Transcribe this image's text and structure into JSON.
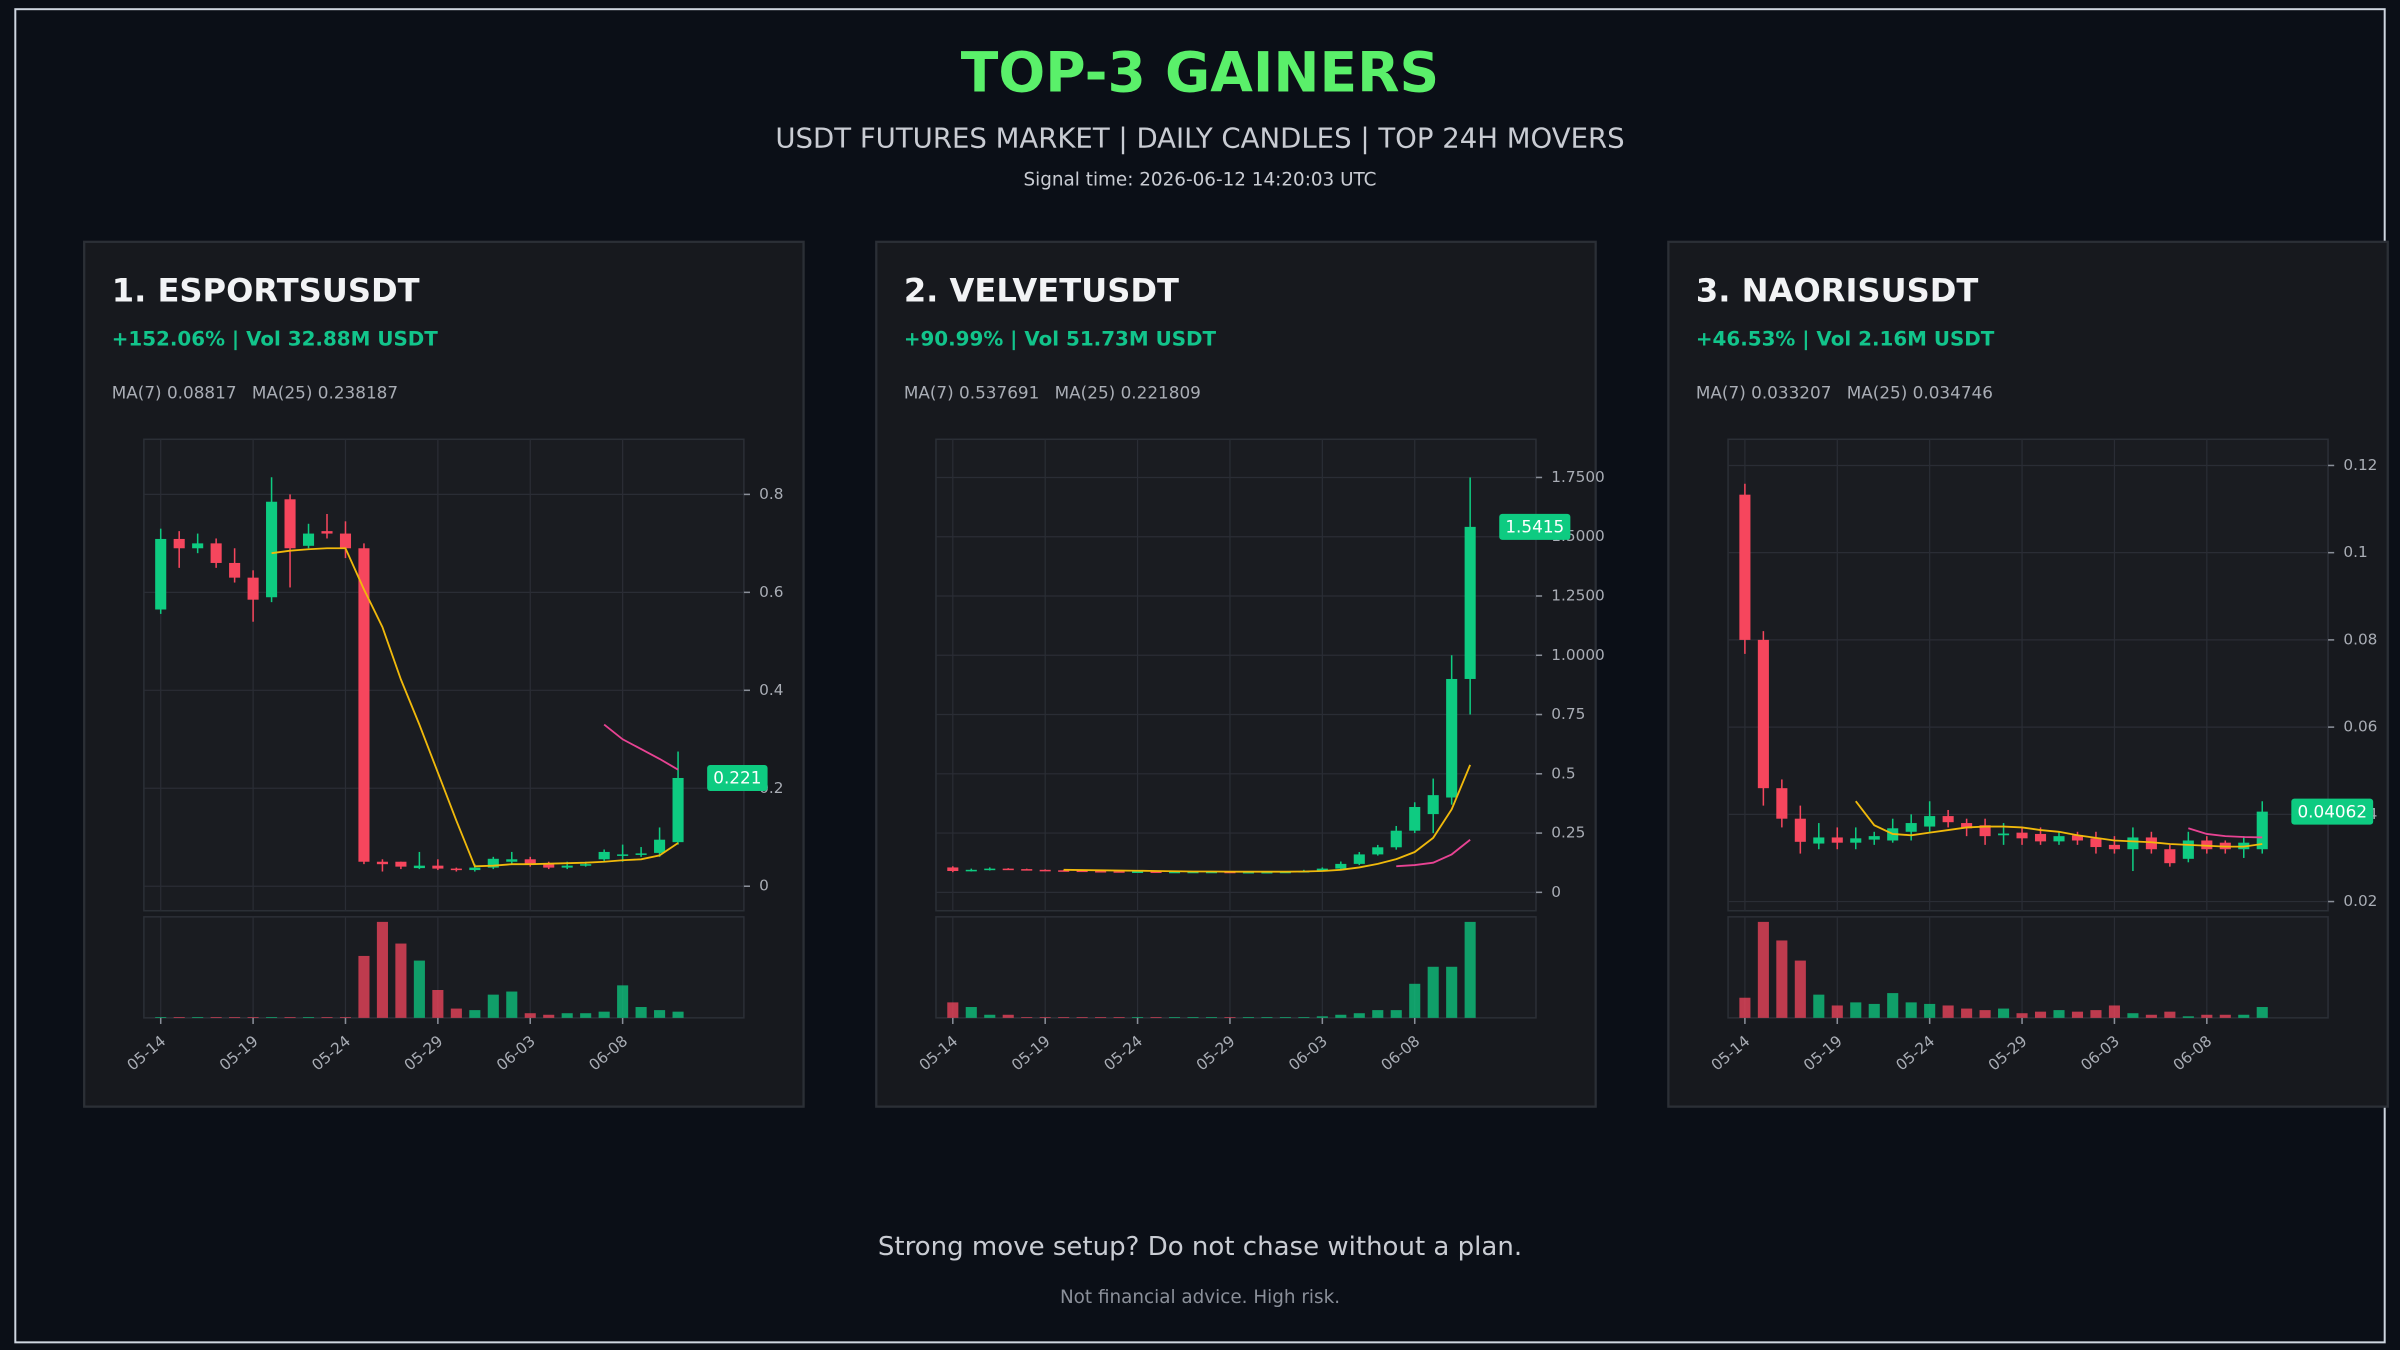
{
  "header": {
    "title": "TOP-3 GAINERS",
    "subtitle": "USDT FUTURES MARKET | DAILY CANDLES | TOP 24H MOVERS",
    "signal": "Signal time: 2026-06-12 14:20:03 UTC"
  },
  "footer": {
    "text": "Strong move setup? Do not chase without a plan.",
    "note": "Not financial advice. High risk."
  },
  "chart_data": [
    {
      "type": "candlestick",
      "title": "1. ESPORTSUSDT",
      "subtitle": "+152.06% | Vol 32.88M USDT",
      "ma_labels": [
        "MA(7) 0.08817",
        "MA(25) 0.238187"
      ],
      "categories": [
        "05-14",
        null,
        null,
        null,
        null,
        "05-19",
        null,
        null,
        null,
        null,
        "05-24",
        null,
        null,
        null,
        null,
        "05-29",
        null,
        null,
        null,
        null,
        "06-03",
        null,
        null,
        null,
        null,
        "06-08",
        null,
        null,
        null
      ],
      "open": [
        0.565,
        0.709,
        0.69,
        0.7,
        0.66,
        0.63,
        0.59,
        0.79,
        0.695,
        0.725,
        0.72,
        0.69,
        0.05,
        0.05,
        0.037,
        0.042,
        0.036,
        0.033,
        0.038,
        0.05,
        0.055,
        0.045,
        0.038,
        0.042,
        0.055,
        0.062,
        0.065,
        0.068,
        0.09
      ],
      "high": [
        0.73,
        0.725,
        0.72,
        0.71,
        0.69,
        0.645,
        0.835,
        0.8,
        0.74,
        0.76,
        0.745,
        0.7,
        0.055,
        0.05,
        0.07,
        0.055,
        0.038,
        0.045,
        0.06,
        0.07,
        0.06,
        0.05,
        0.05,
        0.05,
        0.075,
        0.085,
        0.08,
        0.12,
        0.275
      ],
      "low": [
        0.556,
        0.65,
        0.68,
        0.65,
        0.62,
        0.54,
        0.58,
        0.61,
        0.69,
        0.71,
        0.67,
        0.045,
        0.03,
        0.035,
        0.035,
        0.033,
        0.03,
        0.03,
        0.035,
        0.045,
        0.04,
        0.035,
        0.035,
        0.04,
        0.05,
        0.05,
        0.06,
        0.06,
        0.085
      ],
      "close": [
        0.709,
        0.69,
        0.7,
        0.66,
        0.63,
        0.585,
        0.785,
        0.69,
        0.72,
        0.72,
        0.69,
        0.05,
        0.045,
        0.04,
        0.042,
        0.036,
        0.033,
        0.038,
        0.056,
        0.055,
        0.045,
        0.038,
        0.042,
        0.045,
        0.07,
        0.065,
        0.067,
        0.095,
        0.221
      ],
      "volume": [
        0.5,
        0.5,
        0.5,
        0.5,
        0.5,
        0.5,
        0.5,
        0.5,
        0.5,
        0.5,
        0.5,
        40,
        62,
        48,
        37,
        18,
        6,
        5,
        15,
        17,
        3,
        2,
        3,
        3,
        4,
        21,
        7,
        5,
        4
      ],
      "ma7": [
        null,
        null,
        null,
        null,
        null,
        null,
        0.68,
        0.685,
        0.688,
        0.69,
        0.69,
        0.606,
        0.529,
        0.422,
        0.33,
        0.232,
        0.134,
        0.0406,
        0.042,
        0.045,
        0.045,
        0.046,
        0.047,
        0.048,
        0.05,
        0.053,
        0.055,
        0.063,
        0.0882
      ],
      "ma25": [
        null,
        null,
        null,
        null,
        null,
        null,
        null,
        null,
        null,
        null,
        null,
        null,
        null,
        null,
        null,
        null,
        null,
        null,
        null,
        null,
        null,
        null,
        null,
        null,
        0.33,
        0.3,
        0.28,
        0.26,
        0.238
      ],
      "ylim": [
        -0.05,
        0.9125
      ],
      "yticks": [
        0,
        0.2,
        0.4,
        0.6,
        0.8
      ],
      "grid": true,
      "up_color": "#0ecb81",
      "down_color": "#f6465d",
      "ma7_color": "#f0b90b",
      "ma25_color": "#e84393"
    },
    {
      "type": "candlestick",
      "title": "2. VELVETUSDT",
      "subtitle": "+90.99% | Vol 51.73M USDT",
      "ma_labels": [
        "MA(7) 0.537691",
        "MA(25) 0.221809"
      ],
      "categories": [
        "05-14",
        null,
        null,
        null,
        null,
        "05-19",
        null,
        null,
        null,
        null,
        "05-24",
        null,
        null,
        null,
        null,
        "05-29",
        null,
        null,
        null,
        null,
        "06-03",
        null,
        null,
        null,
        null,
        "06-08",
        null,
        null,
        null
      ],
      "open": [
        0.105,
        0.09,
        0.095,
        0.1,
        0.098,
        0.095,
        0.093,
        0.092,
        0.09,
        0.089,
        0.088,
        0.088,
        0.087,
        0.087,
        0.087,
        0.087,
        0.086,
        0.086,
        0.086,
        0.087,
        0.09,
        0.1,
        0.12,
        0.16,
        0.19,
        0.26,
        0.33,
        0.4,
        0.9
      ],
      "high": [
        0.11,
        0.1,
        0.105,
        0.102,
        0.1,
        0.097,
        0.095,
        0.094,
        0.092,
        0.091,
        0.09,
        0.09,
        0.089,
        0.089,
        0.089,
        0.089,
        0.088,
        0.088,
        0.09,
        0.095,
        0.105,
        0.13,
        0.17,
        0.2,
        0.28,
        0.38,
        0.48,
        1.0,
        1.75
      ],
      "low": [
        0.085,
        0.088,
        0.092,
        0.095,
        0.093,
        0.091,
        0.09,
        0.088,
        0.087,
        0.086,
        0.086,
        0.085,
        0.085,
        0.085,
        0.085,
        0.084,
        0.084,
        0.084,
        0.085,
        0.086,
        0.088,
        0.098,
        0.115,
        0.155,
        0.18,
        0.25,
        0.25,
        0.37,
        0.75
      ],
      "close": [
        0.09,
        0.095,
        0.1,
        0.098,
        0.095,
        0.093,
        0.092,
        0.09,
        0.089,
        0.088,
        0.088,
        0.087,
        0.087,
        0.087,
        0.087,
        0.086,
        0.086,
        0.086,
        0.087,
        0.09,
        0.1,
        0.12,
        0.16,
        0.19,
        0.26,
        0.36,
        0.41,
        0.9,
        1.5415
      ],
      "volume": [
        10,
        7,
        2,
        2,
        0.5,
        0.5,
        0.5,
        0.5,
        0.5,
        0.5,
        0.5,
        0.5,
        0.5,
        0.5,
        0.5,
        0.5,
        0.5,
        0.5,
        0.5,
        0.5,
        1,
        2,
        3,
        5,
        5,
        22,
        33,
        33,
        62
      ],
      "ma7": [
        null,
        null,
        null,
        null,
        null,
        null,
        0.095,
        0.094,
        0.093,
        0.092,
        0.091,
        0.09,
        0.089,
        0.088,
        0.088,
        0.087,
        0.087,
        0.087,
        0.087,
        0.088,
        0.09,
        0.095,
        0.105,
        0.12,
        0.14,
        0.17,
        0.23,
        0.35,
        0.5377
      ],
      "ma25": [
        null,
        null,
        null,
        null,
        null,
        null,
        null,
        null,
        null,
        null,
        null,
        null,
        null,
        null,
        null,
        null,
        null,
        null,
        null,
        null,
        null,
        null,
        null,
        null,
        0.11,
        0.115,
        0.125,
        0.16,
        0.2218
      ],
      "ylim": [
        -0.0775,
        1.911
      ],
      "yticks": [
        0,
        0.25,
        0.5,
        0.75,
        {
          "value": 1,
          "label": "1.0000"
        },
        {
          "value": 1.25,
          "label": "1.2500"
        },
        {
          "value": 1.5,
          "label": "1.5000"
        },
        {
          "value": 1.75,
          "label": "1.7500"
        }
      ],
      "grid": true,
      "up_color": "#0ecb81",
      "down_color": "#f6465d",
      "ma7_color": "#f0b90b",
      "ma25_color": "#e84393"
    },
    {
      "type": "candlestick",
      "title": "3. NAORISUSDT",
      "subtitle": "+46.53% | Vol 2.16M USDT",
      "ma_labels": [
        "MA(7) 0.033207",
        "MA(25) 0.034746"
      ],
      "categories": [
        "05-14",
        null,
        null,
        null,
        null,
        "05-19",
        null,
        null,
        null,
        null,
        "05-24",
        null,
        null,
        null,
        null,
        "05-29",
        null,
        null,
        null,
        null,
        "06-03",
        null,
        null,
        null,
        null,
        "06-08",
        null,
        null,
        null
      ],
      "open": [
        0.1133,
        0.08,
        0.046,
        0.039,
        0.0333,
        0.0347,
        0.0335,
        0.0342,
        0.034,
        0.036,
        0.0372,
        0.0396,
        0.038,
        0.0375,
        0.0352,
        0.0358,
        0.0355,
        0.0338,
        0.0352,
        0.0345,
        0.033,
        0.032,
        0.0347,
        0.032,
        0.0298,
        0.034,
        0.0335,
        0.032,
        0.032
      ],
      "high": [
        0.1158,
        0.082,
        0.048,
        0.042,
        0.038,
        0.037,
        0.037,
        0.036,
        0.039,
        0.04,
        0.043,
        0.041,
        0.039,
        0.039,
        0.038,
        0.037,
        0.037,
        0.036,
        0.036,
        0.036,
        0.035,
        0.037,
        0.036,
        0.033,
        0.036,
        0.035,
        0.034,
        0.035,
        0.043
      ],
      "low": [
        0.0768,
        0.042,
        0.037,
        0.031,
        0.032,
        0.032,
        0.032,
        0.033,
        0.0335,
        0.034,
        0.036,
        0.037,
        0.035,
        0.033,
        0.033,
        0.033,
        0.033,
        0.033,
        0.033,
        0.031,
        0.031,
        0.027,
        0.031,
        0.028,
        0.029,
        0.031,
        0.031,
        0.03,
        0.031
      ],
      "close": [
        0.08,
        0.046,
        0.039,
        0.0337,
        0.0347,
        0.0335,
        0.0345,
        0.035,
        0.0368,
        0.038,
        0.0396,
        0.0382,
        0.0368,
        0.035,
        0.0356,
        0.0345,
        0.0338,
        0.035,
        0.034,
        0.0325,
        0.032,
        0.0347,
        0.032,
        0.0288,
        0.034,
        0.032,
        0.032,
        0.0335,
        0.04062
      ],
      "volume": [
        13,
        62,
        50,
        37,
        15,
        8,
        10,
        9,
        16,
        10,
        9,
        8,
        6,
        5,
        6,
        3,
        4,
        5,
        4,
        5,
        8,
        3,
        2,
        4,
        1,
        2,
        2,
        2,
        7
      ],
      "ma7": [
        null,
        null,
        null,
        null,
        null,
        null,
        0.043,
        0.0375,
        0.0355,
        0.0352,
        0.0358,
        0.0364,
        0.037,
        0.0372,
        0.0372,
        0.037,
        0.0364,
        0.036,
        0.0352,
        0.0346,
        0.034,
        0.0338,
        0.0336,
        0.0332,
        0.033,
        0.0328,
        0.0326,
        0.0326,
        0.0332
      ],
      "ma25": [
        null,
        null,
        null,
        null,
        null,
        null,
        null,
        null,
        null,
        null,
        null,
        null,
        null,
        null,
        null,
        null,
        null,
        null,
        null,
        null,
        null,
        null,
        null,
        null,
        0.0368,
        0.0355,
        0.035,
        0.0348,
        0.0347
      ],
      "ylim": [
        0.0179,
        0.126
      ],
      "yticks": [
        0.02,
        0.04,
        0.06,
        0.08,
        0.1,
        0.12
      ],
      "grid": true,
      "up_color": "#0ecb81",
      "down_color": "#f6465d",
      "ma7_color": "#f0b90b",
      "ma25_color": "#e84393"
    }
  ]
}
